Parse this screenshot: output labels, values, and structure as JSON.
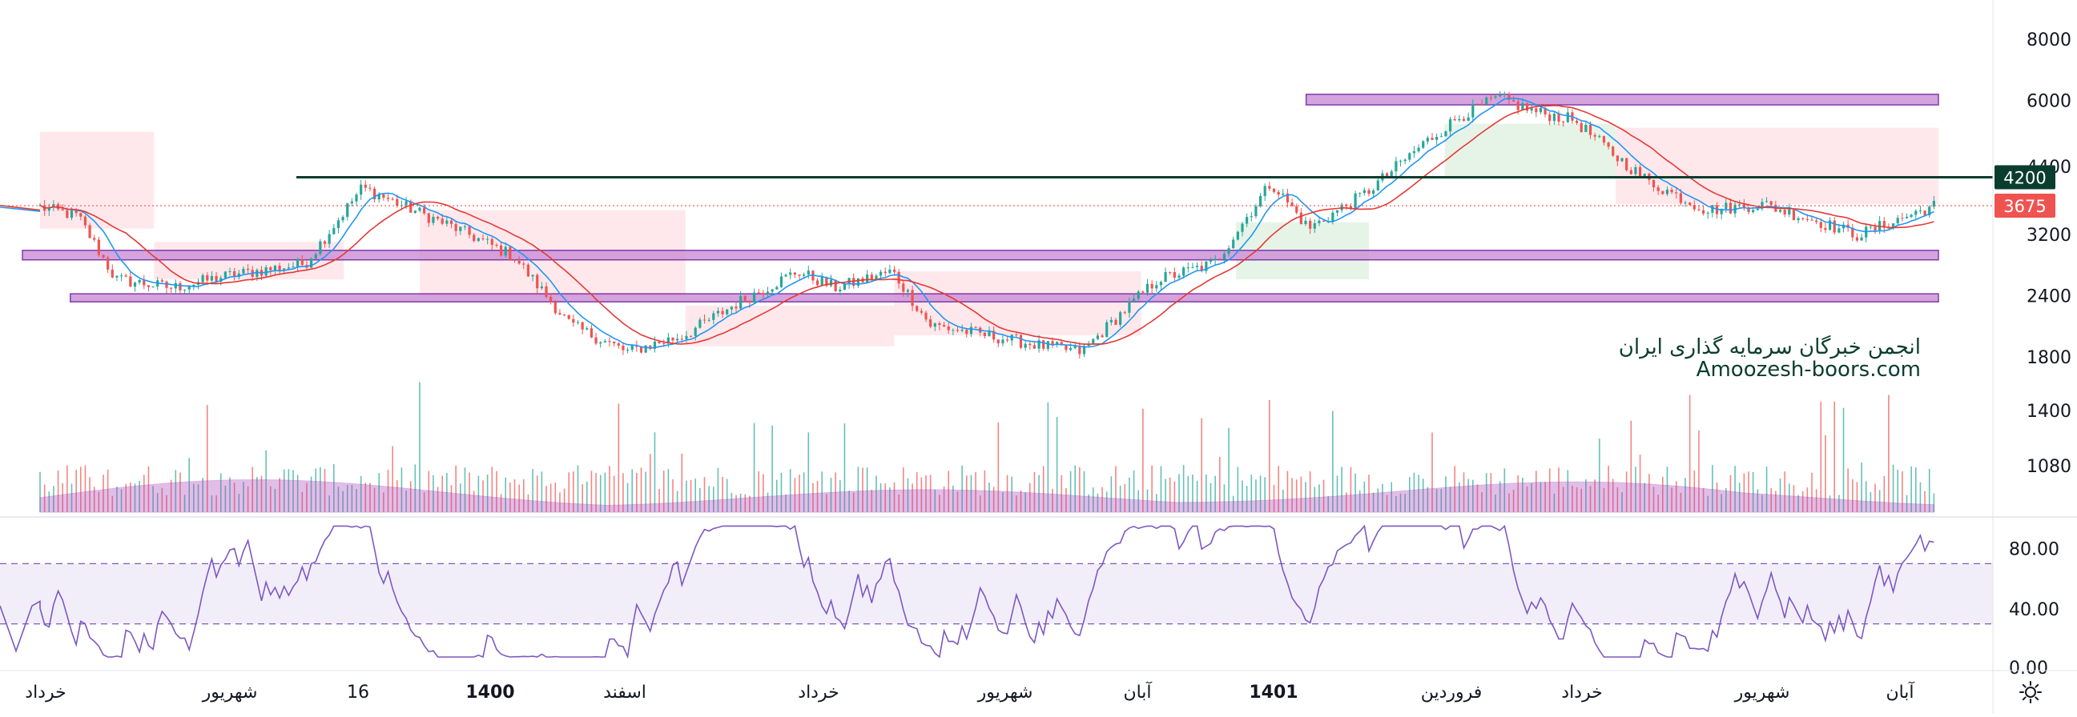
{
  "chart_data": {
    "type": "candlestick",
    "price_axis": {
      "ticks": [
        "8000",
        "6000",
        "4400",
        "3200",
        "2400",
        "1800",
        "1400",
        "1080"
      ],
      "scale": "log",
      "range": [
        900,
        9000
      ]
    },
    "rsi_axis": {
      "ticks": [
        "80.00",
        "40.00",
        "0.00"
      ],
      "range": [
        0,
        100
      ],
      "band": [
        30,
        70
      ]
    },
    "time_axis": {
      "labels": [
        "خرداد",
        "شهریور",
        "16",
        "1400",
        "اسفند",
        "خرداد",
        "شهریور",
        "آبان",
        "1401",
        "فروردین",
        "خرداد",
        "شهریور",
        "آبان"
      ],
      "bold": [
        "1400",
        "1401"
      ]
    },
    "price_badges": [
      {
        "value": "4200",
        "color": "#0b3d2e"
      },
      {
        "value": "3675",
        "color": "#ef5350"
      }
    ],
    "levels": {
      "resistance_line": 4200,
      "last_price": 3675,
      "zones": [
        {
          "low": 5900,
          "high": 6200,
          "from": 0.67,
          "to": 1.0
        },
        {
          "low": 2850,
          "high": 2980,
          "from": 0.0,
          "to": 1.0
        },
        {
          "low": 2340,
          "high": 2430,
          "from": 0.025,
          "to": 1.0
        }
      ]
    },
    "anchors": [
      [
        0.0,
        3650
      ],
      [
        0.02,
        3500
      ],
      [
        0.04,
        2600
      ],
      [
        0.07,
        2500
      ],
      [
        0.1,
        2650
      ],
      [
        0.14,
        2800
      ],
      [
        0.17,
        4000
      ],
      [
        0.19,
        3700
      ],
      [
        0.22,
        3300
      ],
      [
        0.25,
        2900
      ],
      [
        0.28,
        2100
      ],
      [
        0.31,
        1850
      ],
      [
        0.34,
        2000
      ],
      [
        0.37,
        2350
      ],
      [
        0.4,
        2700
      ],
      [
        0.42,
        2500
      ],
      [
        0.45,
        2700
      ],
      [
        0.47,
        2100
      ],
      [
        0.5,
        2000
      ],
      [
        0.53,
        1900
      ],
      [
        0.55,
        1850
      ],
      [
        0.57,
        2200
      ],
      [
        0.59,
        2600
      ],
      [
        0.62,
        2800
      ],
      [
        0.65,
        4100
      ],
      [
        0.67,
        3300
      ],
      [
        0.7,
        3900
      ],
      [
        0.73,
        4900
      ],
      [
        0.75,
        5600
      ],
      [
        0.77,
        6100
      ],
      [
        0.79,
        5700
      ],
      [
        0.81,
        5500
      ],
      [
        0.83,
        4700
      ],
      [
        0.85,
        4100
      ],
      [
        0.88,
        3600
      ],
      [
        0.91,
        3700
      ],
      [
        0.94,
        3400
      ],
      [
        0.96,
        3200
      ],
      [
        1.0,
        3675
      ]
    ],
    "watermark": {
      "line1": "انجمن خبرگان سرمایه گذاری ایران",
      "line2": "Amoozesh-boors.com"
    },
    "colors": {
      "up": "#26a69a",
      "down": "#ef5350",
      "zone": "#ce93d8",
      "rsi": "#7e57c2",
      "volume_area": "#ab47bc",
      "ma_fast": "#2196f3",
      "ma_slow": "#e53935"
    },
    "icons": {
      "settings": "sun-gear-icon"
    }
  }
}
